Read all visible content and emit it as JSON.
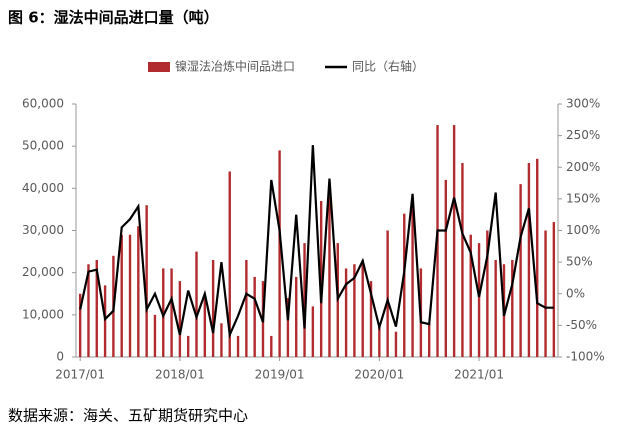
{
  "chart_data": {
    "type": "bar-line",
    "title": "图 6：湿法中间品进口量（吨）",
    "source": "数据来源：海关、五矿期货研究中心",
    "categories": [
      "2017/01",
      null,
      null,
      null,
      null,
      null,
      null,
      null,
      null,
      null,
      null,
      null,
      "2018/01",
      null,
      null,
      null,
      null,
      null,
      null,
      null,
      null,
      null,
      null,
      null,
      "2019/01",
      null,
      null,
      null,
      null,
      null,
      null,
      null,
      null,
      null,
      null,
      null,
      "2020/01",
      null,
      null,
      null,
      null,
      null,
      null,
      null,
      null,
      null,
      null,
      null,
      "2021/01",
      null,
      null,
      null,
      null,
      null,
      null,
      null,
      null,
      null
    ],
    "series": [
      {
        "name": "镍湿法冶炼中间品进口",
        "color": "#b22b2e",
        "values": [
          15000,
          22000,
          23000,
          17000,
          24000,
          29000,
          29000,
          31000,
          36000,
          10000,
          21000,
          21000,
          18000,
          5000,
          25000,
          15000,
          23000,
          8000,
          44000,
          5000,
          23000,
          19000,
          18000,
          5000,
          49000,
          14000,
          19000,
          27000,
          12000,
          37000,
          38000,
          27000,
          21000,
          22000,
          23000,
          18000,
          8000,
          30000,
          6000,
          34000,
          37000,
          21000,
          8000,
          55000,
          42000,
          55000,
          46000,
          29000,
          27000,
          30000,
          23000,
          22000,
          23000,
          41000,
          46000,
          47000,
          30000,
          32000
        ]
      },
      {
        "name": "同比（右轴）",
        "color": "#000000",
        "axis": "y2",
        "values": [
          -25,
          35,
          38,
          -40,
          -27,
          105,
          118,
          138,
          -25,
          0,
          -35,
          -8,
          -65,
          5,
          -37,
          0,
          -62,
          50,
          -65,
          -35,
          0,
          -8,
          -45,
          180,
          100,
          -42,
          125,
          -55,
          235,
          -15,
          182,
          -8,
          15,
          25,
          52,
          0,
          -53,
          -10,
          -52,
          35,
          158,
          -45,
          -48,
          100,
          100,
          152,
          95,
          65,
          -5,
          60,
          160,
          -35,
          15,
          90,
          135,
          -15,
          -22,
          -22
        ]
      }
    ],
    "ylim": [
      0,
      60000
    ],
    "yticks": [
      0,
      {
        "value": 10000,
        "label": "10,000"
      },
      {
        "value": 20000,
        "label": "20,000"
      },
      {
        "value": 30000,
        "label": "30,000"
      },
      {
        "value": 40000,
        "label": "40,000"
      },
      {
        "value": 50000,
        "label": "50,000"
      },
      {
        "value": 60000,
        "label": "60,000"
      }
    ],
    "y2lim": [
      -100,
      300
    ],
    "y2ticks": [
      {
        "value": -100,
        "label": "-100%"
      },
      {
        "value": -50,
        "label": "-50%"
      },
      {
        "value": 0,
        "label": "0%"
      },
      {
        "value": 50,
        "label": "50%"
      },
      {
        "value": 100,
        "label": "100%"
      },
      {
        "value": 150,
        "label": "150%"
      },
      {
        "value": 200,
        "label": "200%"
      },
      {
        "value": 250,
        "label": "250%"
      },
      {
        "value": 300,
        "label": "300%"
      }
    ]
  }
}
